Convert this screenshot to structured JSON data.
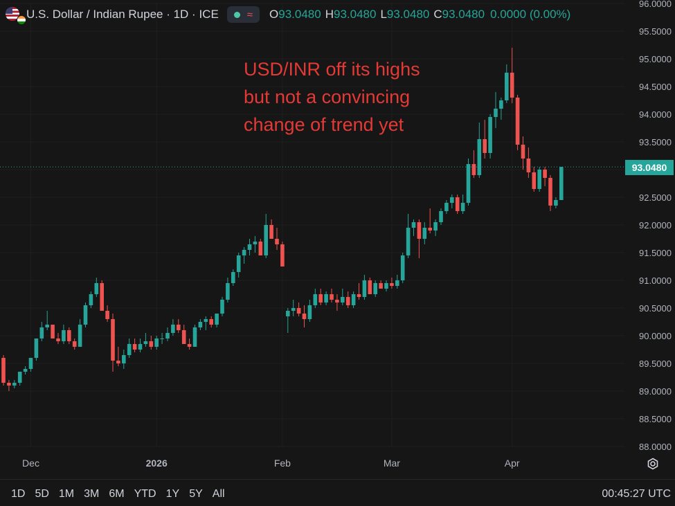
{
  "header": {
    "title": "U.S. Dollar / Indian Rupee · 1D · ICE",
    "ohlc": [
      {
        "label": "O",
        "value": "93.0480"
      },
      {
        "label": "H",
        "value": "93.0480"
      },
      {
        "label": "L",
        "value": "93.0480"
      },
      {
        "label": "C",
        "value": "93.0480"
      }
    ],
    "change": "0.0000 (0.00%)"
  },
  "annotation": [
    "USD/INR off its highs",
    "but not a convincing",
    "change of trend yet"
  ],
  "last_price_label": "93.0480",
  "range_buttons": [
    "1D",
    "5D",
    "1M",
    "3M",
    "6M",
    "YTD",
    "1Y",
    "5Y",
    "All"
  ],
  "clock": "00:45:27 UTC",
  "colors": {
    "up": "#26a69a",
    "down": "#ef5350",
    "annotation": "#e53935",
    "background": "#161616"
  },
  "icons": {
    "settings": "gear-icon",
    "flag": "us-india-flag-icon"
  },
  "chart_data": {
    "type": "candlestick",
    "ylim": [
      88.0,
      96.0
    ],
    "y_ticks": [
      "88.0000",
      "88.5000",
      "89.0000",
      "89.5000",
      "90.0000",
      "90.5000",
      "91.0000",
      "91.5000",
      "92.0000",
      "92.5000",
      "93.0000",
      "93.5000",
      "94.0000",
      "94.5000",
      "95.0000",
      "95.5000",
      "96.0000"
    ],
    "x_ticks": [
      {
        "label": "Dec",
        "index": 5
      },
      {
        "label": "2026",
        "index": 28
      },
      {
        "label": "Feb",
        "index": 51
      },
      {
        "label": "Mar",
        "index": 71
      },
      {
        "label": "Apr",
        "index": 93
      }
    ],
    "last_price": 93.048,
    "candles": [
      {
        "o": 89.6,
        "h": 89.65,
        "l": 89.1,
        "c": 89.15
      },
      {
        "o": 89.15,
        "h": 89.2,
        "l": 89.0,
        "c": 89.1
      },
      {
        "o": 89.1,
        "h": 89.2,
        "l": 89.05,
        "c": 89.15
      },
      {
        "o": 89.15,
        "h": 89.35,
        "l": 89.1,
        "c": 89.35
      },
      {
        "o": 89.35,
        "h": 89.45,
        "l": 89.3,
        "c": 89.4
      },
      {
        "o": 89.4,
        "h": 89.6,
        "l": 89.35,
        "c": 89.6
      },
      {
        "o": 89.6,
        "h": 89.95,
        "l": 89.55,
        "c": 89.95
      },
      {
        "o": 89.95,
        "h": 90.25,
        "l": 89.9,
        "c": 90.15
      },
      {
        "o": 90.15,
        "h": 90.45,
        "l": 90.1,
        "c": 90.2
      },
      {
        "o": 90.2,
        "h": 90.2,
        "l": 89.95,
        "c": 89.95
      },
      {
        "o": 89.95,
        "h": 90.05,
        "l": 89.85,
        "c": 89.9
      },
      {
        "o": 89.9,
        "h": 90.2,
        "l": 89.85,
        "c": 90.1
      },
      {
        "o": 90.1,
        "h": 90.15,
        "l": 89.85,
        "c": 89.9
      },
      {
        "o": 89.9,
        "h": 89.95,
        "l": 89.75,
        "c": 89.8
      },
      {
        "o": 89.8,
        "h": 90.3,
        "l": 89.8,
        "c": 90.2
      },
      {
        "o": 90.2,
        "h": 90.6,
        "l": 90.15,
        "c": 90.55
      },
      {
        "o": 90.55,
        "h": 90.8,
        "l": 90.5,
        "c": 90.75
      },
      {
        "o": 90.75,
        "h": 91.05,
        "l": 90.7,
        "c": 90.95
      },
      {
        "o": 90.95,
        "h": 91.0,
        "l": 90.45,
        "c": 90.45
      },
      {
        "o": 90.45,
        "h": 90.55,
        "l": 90.25,
        "c": 90.3
      },
      {
        "o": 90.3,
        "h": 90.4,
        "l": 89.35,
        "c": 89.55
      },
      {
        "o": 89.55,
        "h": 89.8,
        "l": 89.45,
        "c": 89.5
      },
      {
        "o": 89.5,
        "h": 89.75,
        "l": 89.4,
        "c": 89.65
      },
      {
        "o": 89.65,
        "h": 89.95,
        "l": 89.6,
        "c": 89.85
      },
      {
        "o": 89.85,
        "h": 89.95,
        "l": 89.7,
        "c": 89.75
      },
      {
        "o": 89.75,
        "h": 89.95,
        "l": 89.7,
        "c": 89.85
      },
      {
        "o": 89.85,
        "h": 90.05,
        "l": 89.8,
        "c": 89.9
      },
      {
        "o": 89.9,
        "h": 90.0,
        "l": 89.75,
        "c": 89.8
      },
      {
        "o": 89.8,
        "h": 90.0,
        "l": 89.75,
        "c": 89.95
      },
      {
        "o": 89.95,
        "h": 90.05,
        "l": 89.85,
        "c": 89.95
      },
      {
        "o": 89.95,
        "h": 90.15,
        "l": 89.9,
        "c": 90.05
      },
      {
        "o": 90.05,
        "h": 90.3,
        "l": 90.0,
        "c": 90.2
      },
      {
        "o": 90.2,
        "h": 90.3,
        "l": 90.05,
        "c": 90.1
      },
      {
        "o": 90.1,
        "h": 90.2,
        "l": 89.85,
        "c": 89.85
      },
      {
        "o": 89.85,
        "h": 89.95,
        "l": 89.75,
        "c": 89.8
      },
      {
        "o": 89.8,
        "h": 90.2,
        "l": 89.8,
        "c": 90.15
      },
      {
        "o": 90.15,
        "h": 90.3,
        "l": 90.1,
        "c": 90.25
      },
      {
        "o": 90.25,
        "h": 90.35,
        "l": 90.1,
        "c": 90.3
      },
      {
        "o": 90.3,
        "h": 90.35,
        "l": 90.15,
        "c": 90.2
      },
      {
        "o": 90.2,
        "h": 90.4,
        "l": 90.15,
        "c": 90.4
      },
      {
        "o": 90.4,
        "h": 90.7,
        "l": 90.35,
        "c": 90.65
      },
      {
        "o": 90.65,
        "h": 91.05,
        "l": 90.6,
        "c": 90.95
      },
      {
        "o": 90.95,
        "h": 91.2,
        "l": 90.9,
        "c": 91.15
      },
      {
        "o": 91.15,
        "h": 91.5,
        "l": 91.05,
        "c": 91.45
      },
      {
        "o": 91.45,
        "h": 91.6,
        "l": 91.3,
        "c": 91.55
      },
      {
        "o": 91.55,
        "h": 91.75,
        "l": 91.45,
        "c": 91.65
      },
      {
        "o": 91.65,
        "h": 91.8,
        "l": 91.5,
        "c": 91.7
      },
      {
        "o": 91.7,
        "h": 91.75,
        "l": 91.45,
        "c": 91.45
      },
      {
        "o": 91.45,
        "h": 92.2,
        "l": 91.4,
        "c": 92.0
      },
      {
        "o": 92.0,
        "h": 92.1,
        "l": 91.75,
        "c": 91.75
      },
      {
        "o": 91.75,
        "h": 91.95,
        "l": 91.55,
        "c": 91.65
      },
      {
        "o": 91.65,
        "h": 91.7,
        "l": 91.25,
        "c": 91.25
      },
      {
        "o": 90.35,
        "h": 90.5,
        "l": 90.05,
        "c": 90.45
      },
      {
        "o": 90.45,
        "h": 90.65,
        "l": 90.35,
        "c": 90.5
      },
      {
        "o": 90.5,
        "h": 90.6,
        "l": 90.35,
        "c": 90.4
      },
      {
        "o": 90.4,
        "h": 90.55,
        "l": 90.15,
        "c": 90.3
      },
      {
        "o": 90.3,
        "h": 90.65,
        "l": 90.25,
        "c": 90.55
      },
      {
        "o": 90.55,
        "h": 90.85,
        "l": 90.5,
        "c": 90.75
      },
      {
        "o": 90.75,
        "h": 90.85,
        "l": 90.55,
        "c": 90.6
      },
      {
        "o": 90.6,
        "h": 90.8,
        "l": 90.55,
        "c": 90.75
      },
      {
        "o": 90.75,
        "h": 90.85,
        "l": 90.6,
        "c": 90.65
      },
      {
        "o": 90.65,
        "h": 90.75,
        "l": 90.45,
        "c": 90.6
      },
      {
        "o": 90.6,
        "h": 90.85,
        "l": 90.55,
        "c": 90.7
      },
      {
        "o": 90.7,
        "h": 90.8,
        "l": 90.5,
        "c": 90.55
      },
      {
        "o": 90.55,
        "h": 90.8,
        "l": 90.5,
        "c": 90.75
      },
      {
        "o": 90.75,
        "h": 90.95,
        "l": 90.65,
        "c": 90.7
      },
      {
        "o": 90.7,
        "h": 91.1,
        "l": 90.65,
        "c": 91.0
      },
      {
        "o": 91.0,
        "h": 91.05,
        "l": 90.75,
        "c": 90.75
      },
      {
        "o": 90.75,
        "h": 91.0,
        "l": 90.7,
        "c": 90.95
      },
      {
        "o": 90.95,
        "h": 91.0,
        "l": 90.85,
        "c": 90.85
      },
      {
        "o": 90.85,
        "h": 91.0,
        "l": 90.8,
        "c": 90.95
      },
      {
        "o": 90.95,
        "h": 91.05,
        "l": 90.85,
        "c": 90.9
      },
      {
        "o": 90.9,
        "h": 91.1,
        "l": 90.85,
        "c": 91.0
      },
      {
        "o": 91.0,
        "h": 91.5,
        "l": 90.95,
        "c": 91.45
      },
      {
        "o": 91.45,
        "h": 92.2,
        "l": 91.4,
        "c": 91.95
      },
      {
        "o": 91.95,
        "h": 92.1,
        "l": 91.8,
        "c": 92.05
      },
      {
        "o": 92.05,
        "h": 92.1,
        "l": 91.4,
        "c": 91.75
      },
      {
        "o": 91.75,
        "h": 92.05,
        "l": 91.65,
        "c": 91.95
      },
      {
        "o": 91.95,
        "h": 92.3,
        "l": 91.85,
        "c": 91.9
      },
      {
        "o": 91.9,
        "h": 92.1,
        "l": 91.8,
        "c": 92.05
      },
      {
        "o": 92.05,
        "h": 92.3,
        "l": 92.0,
        "c": 92.25
      },
      {
        "o": 92.25,
        "h": 92.45,
        "l": 92.2,
        "c": 92.4
      },
      {
        "o": 92.4,
        "h": 92.55,
        "l": 92.3,
        "c": 92.5
      },
      {
        "o": 92.5,
        "h": 92.55,
        "l": 92.2,
        "c": 92.25
      },
      {
        "o": 92.25,
        "h": 92.55,
        "l": 92.2,
        "c": 92.4
      },
      {
        "o": 92.4,
        "h": 93.2,
        "l": 92.35,
        "c": 93.1
      },
      {
        "o": 93.1,
        "h": 93.35,
        "l": 92.85,
        "c": 92.9
      },
      {
        "o": 92.9,
        "h": 93.85,
        "l": 92.85,
        "c": 93.55
      },
      {
        "o": 93.55,
        "h": 93.9,
        "l": 93.2,
        "c": 93.3
      },
      {
        "o": 93.3,
        "h": 94.0,
        "l": 93.2,
        "c": 93.95
      },
      {
        "o": 93.95,
        "h": 94.4,
        "l": 93.75,
        "c": 94.1
      },
      {
        "o": 94.1,
        "h": 94.3,
        "l": 93.9,
        "c": 94.25
      },
      {
        "o": 94.25,
        "h": 94.9,
        "l": 94.2,
        "c": 94.75
      },
      {
        "o": 94.75,
        "h": 95.2,
        "l": 94.2,
        "c": 94.3
      },
      {
        "o": 94.3,
        "h": 94.35,
        "l": 93.35,
        "c": 93.45
      },
      {
        "o": 93.45,
        "h": 93.6,
        "l": 93.0,
        "c": 93.2
      },
      {
        "o": 93.2,
        "h": 93.4,
        "l": 92.85,
        "c": 92.95
      },
      {
        "o": 92.95,
        "h": 93.05,
        "l": 92.6,
        "c": 92.65
      },
      {
        "o": 92.65,
        "h": 93.05,
        "l": 92.6,
        "c": 93.0
      },
      {
        "o": 93.0,
        "h": 93.05,
        "l": 92.7,
        "c": 92.85
      },
      {
        "o": 92.85,
        "h": 92.9,
        "l": 92.25,
        "c": 92.35
      },
      {
        "o": 92.35,
        "h": 92.5,
        "l": 92.3,
        "c": 92.45
      },
      {
        "o": 92.45,
        "h": 93.05,
        "l": 92.45,
        "c": 93.048
      }
    ]
  }
}
